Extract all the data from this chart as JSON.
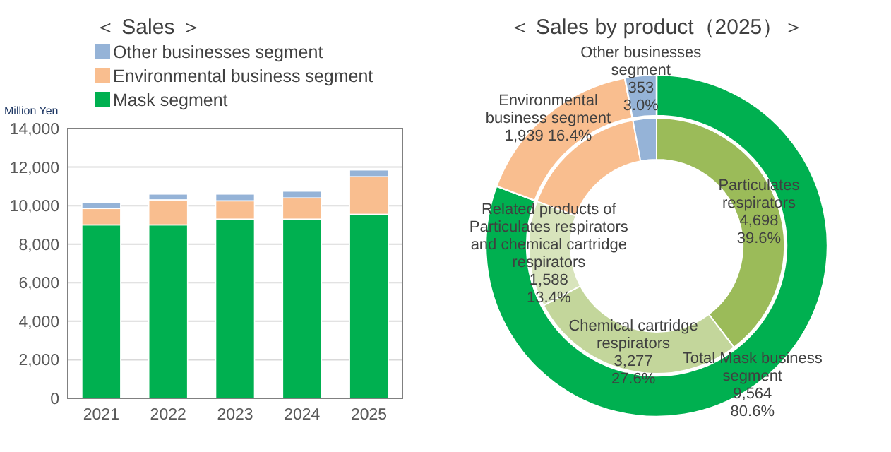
{
  "chart_data": [
    {
      "type": "bar",
      "title": "＜ Sales ＞",
      "ylabel": "Million Yen",
      "stacked": true,
      "categories": [
        "2021",
        "2022",
        "2023",
        "2024",
        "2025"
      ],
      "series": [
        {
          "name": "Mask segment",
          "color": "#00b050",
          "values": [
            9000,
            9000,
            9300,
            9300,
            9550
          ]
        },
        {
          "name": "Environmental business segment",
          "color": "#f9be8f",
          "values": [
            850,
            1300,
            950,
            1100,
            1950
          ]
        },
        {
          "name": "Other businesses segment",
          "color": "#95b3d7",
          "values": [
            300,
            300,
            350,
            350,
            350
          ]
        }
      ],
      "ylim": [
        0,
        14000
      ],
      "yticks": [
        {
          "value": 0,
          "label": "0"
        },
        {
          "value": 2000,
          "label": "2,000"
        },
        {
          "value": 4000,
          "label": "4,000"
        },
        {
          "value": 6000,
          "label": "6,000"
        },
        {
          "value": 8000,
          "label": "8,000"
        },
        {
          "value": 10000,
          "label": "10,000"
        },
        {
          "value": 12000,
          "label": "12,000"
        },
        {
          "value": 14000,
          "label": "14,000"
        }
      ],
      "grid": "y",
      "legend": "top"
    },
    {
      "type": "donut",
      "title": "＜ Sales by product（2025）＞",
      "categories": [
        "Total Mask business\nsegment",
        "Environmental\nbusiness segment",
        "Other businesses\nsegment"
      ],
      "colors": [
        "#00b050",
        "#f9be8f",
        "#95b3d7"
      ],
      "values": [
        9564,
        1939,
        353
      ],
      "value_labels": [
        "9,564\n80.6%",
        "1,939 16.4%",
        "353\n3.0%"
      ]
    },
    {
      "type": "donut",
      "categories": [
        "Particulates\nrespirators",
        "Chemical cartridge\nrespirators",
        "Related products of\nParticulates respirators\nand chemical cartridge\nrespirators",
        null,
        null
      ],
      "colors": [
        "#9bbb59",
        "#c3d69b",
        "#d8e4bc",
        "#f9be8f",
        "#95b3d7"
      ],
      "values": [
        4698,
        3277,
        1588,
        1939,
        353
      ],
      "value_labels": [
        "4,698\n39.6%",
        "3,277\n27.6%",
        "1,588\n13.4%",
        null,
        null
      ]
    }
  ]
}
